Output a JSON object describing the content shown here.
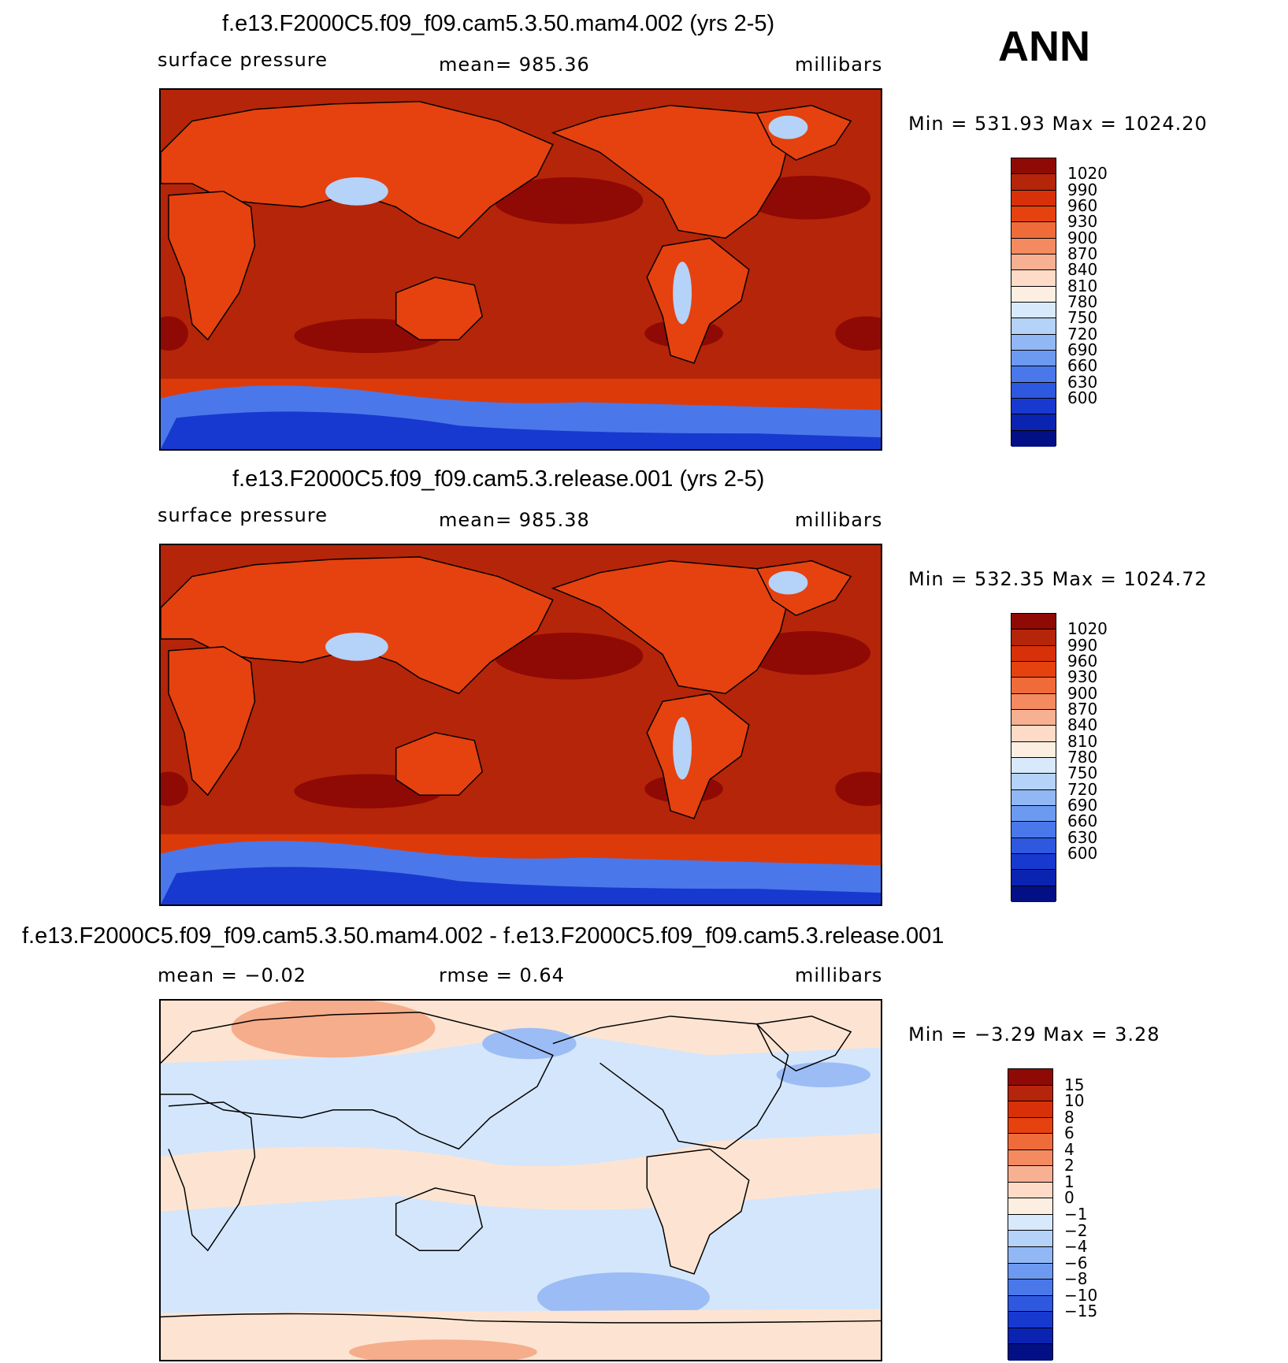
{
  "season": "ANN",
  "panels": [
    {
      "title": "f.e13.F2000C5.f09_f09.cam5.3.50.mam4.002 (yrs 2-5)",
      "left": "surface pressure",
      "center": "mean=  985.36",
      "right": "millibars",
      "minmax": "Min  =  531.93  Max  =  1024.20",
      "colors": {
        "ocean": "#b52509",
        "high": "#8f0a05",
        "land": "#e5420f",
        "southern": "#dd3a0a"
      },
      "legend": [
        "1020",
        "990",
        "960",
        "930",
        "900",
        "870",
        "840",
        "810",
        "780",
        "750",
        "720",
        "690",
        "660",
        "630",
        "600"
      ]
    },
    {
      "title": "f.e13.F2000C5.f09_f09.cam5.3.release.001 (yrs 2-5)",
      "left": "surface pressure",
      "center": "mean=  985.38",
      "right": "millibars",
      "minmax": "Min  =  532.35  Max  =  1024.72",
      "colors": {
        "ocean": "#b52509",
        "high": "#8f0a05",
        "land": "#e5420f",
        "southern": "#dd3a0a"
      },
      "legend": [
        "1020",
        "990",
        "960",
        "930",
        "900",
        "870",
        "840",
        "810",
        "780",
        "750",
        "720",
        "690",
        "660",
        "630",
        "600"
      ]
    },
    {
      "title": "f.e13.F2000C5.f09_f09.cam5.3.50.mam4.002 - f.e13.F2000C5.f09_f09.cam5.3.release.001",
      "left": "mean  =    −0.02",
      "center": "rmse  =      0.64",
      "right": "millibars",
      "minmax": "Min  =     −3.29  Max  =       3.28",
      "colors": {
        "ocean": "#d4e6fb",
        "pos": "#fde4d2",
        "pos2": "#f5ad8b",
        "neg": "#9bbcf5"
      },
      "legend": [
        "15",
        "10",
        "8",
        "6",
        "4",
        "2",
        "1",
        "0",
        "−1",
        "−2",
        "−4",
        "−6",
        "−8",
        "−10",
        "−15"
      ]
    }
  ],
  "scale_colors": {
    "abs": [
      "#8f0a05",
      "#b52509",
      "#d8310a",
      "#e5420f",
      "#f06b3a",
      "#f48a5f",
      "#f8b093",
      "#fddbc7",
      "#fcefe1",
      "#d8e9fb",
      "#b5d2f8",
      "#92b7f5",
      "#6d9af1",
      "#4a78ea",
      "#2e58e0",
      "#1839cf",
      "#0a23b0",
      "#020f85"
    ],
    "diff": [
      "#8f0a05",
      "#b52509",
      "#d8310a",
      "#e5420f",
      "#f06b3a",
      "#f48a5f",
      "#f8b093",
      "#fddbc7",
      "#fcefe1",
      "#d8e9fb",
      "#b5d2f8",
      "#92b7f5",
      "#6d9af1",
      "#4a78ea",
      "#2e58e0",
      "#1839cf",
      "#0a23b0",
      "#020f85"
    ]
  }
}
